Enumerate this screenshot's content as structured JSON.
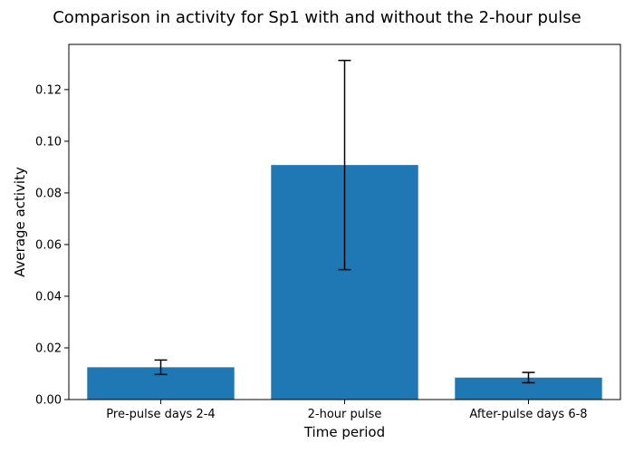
{
  "chart_data": {
    "type": "bar",
    "title": "Comparison in activity for Sp1 with and without the 2-hour pulse",
    "xlabel": "Time period",
    "ylabel": "Average activity",
    "categories": [
      "Pre-pulse days 2-4",
      "2-hour pulse",
      "After-pulse days 6-8"
    ],
    "values": [
      0.0125,
      0.0908,
      0.0085
    ],
    "errors": [
      0.0028,
      0.0405,
      0.002
    ],
    "ylim": [
      0,
      0.1375
    ],
    "yticks": [
      "0.00",
      "0.02",
      "0.04",
      "0.06",
      "0.08",
      "0.10",
      "0.12"
    ],
    "grid": false,
    "legend": "none",
    "colors": {
      "bar": "#1f77b4",
      "error": "#000000"
    }
  }
}
